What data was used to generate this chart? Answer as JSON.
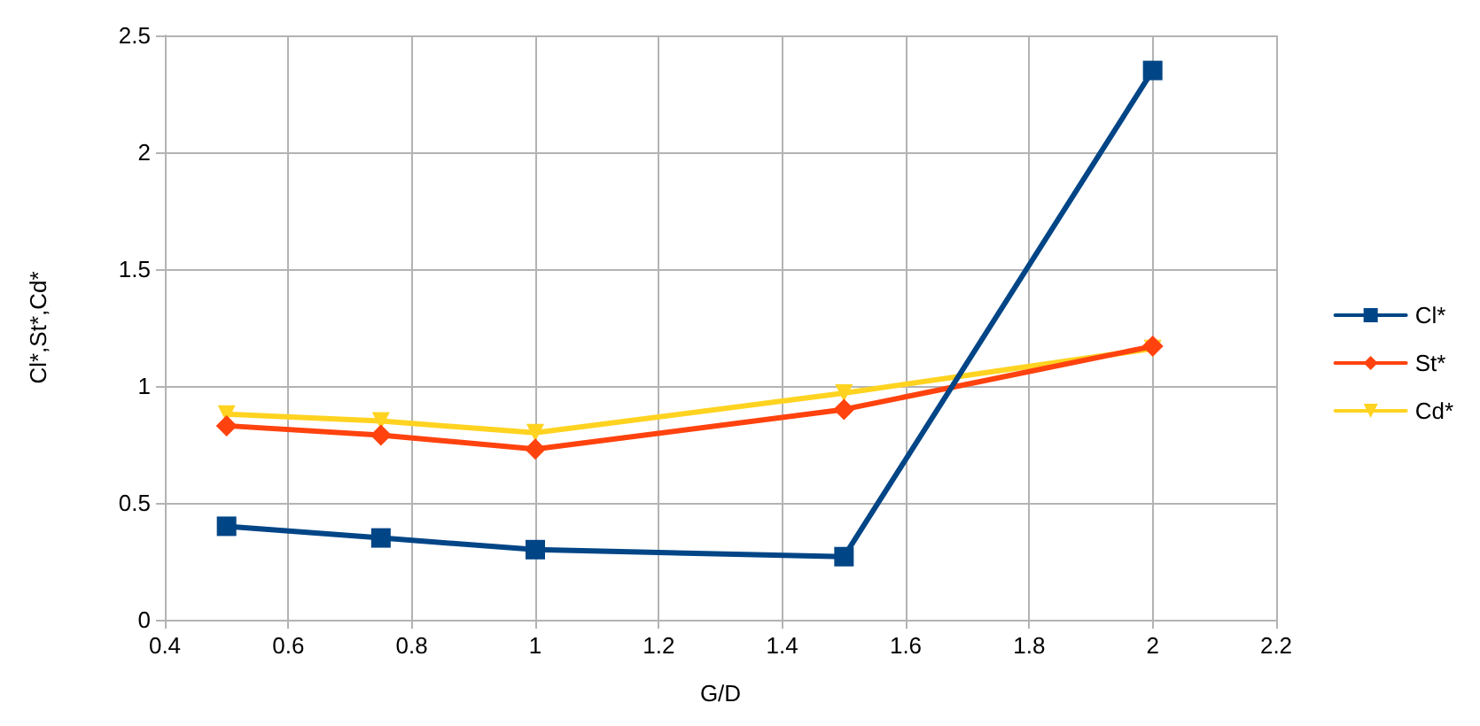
{
  "chart_data": {
    "type": "line",
    "xlabel": "G/D",
    "ylabel": "Cl*,St*,Cd*",
    "x": [
      0.5,
      0.75,
      1,
      1.5,
      2
    ],
    "series": [
      {
        "name": "Cl*",
        "color": "#004586",
        "values": [
          0.4,
          0.35,
          0.3,
          0.27,
          2.35
        ],
        "marker": "square"
      },
      {
        "name": "St*",
        "color": "#ff420e",
        "values": [
          0.83,
          0.79,
          0.73,
          0.9,
          1.17
        ],
        "marker": "diamond"
      },
      {
        "name": "Cd*",
        "color": "#ffd320",
        "values": [
          0.88,
          0.85,
          0.8,
          0.97,
          1.16
        ],
        "marker": "triangle"
      }
    ],
    "xlim": [
      0.4,
      2.2
    ],
    "xticks": [
      0.4,
      0.6,
      0.8,
      1,
      1.2,
      1.4,
      1.6,
      1.8,
      2,
      2.2
    ],
    "ylim": [
      0,
      2.5
    ],
    "yticks": [
      0,
      0.5,
      1,
      1.5,
      2,
      2.5
    ],
    "grid": true,
    "legend": "right",
    "line_style": "solid"
  }
}
